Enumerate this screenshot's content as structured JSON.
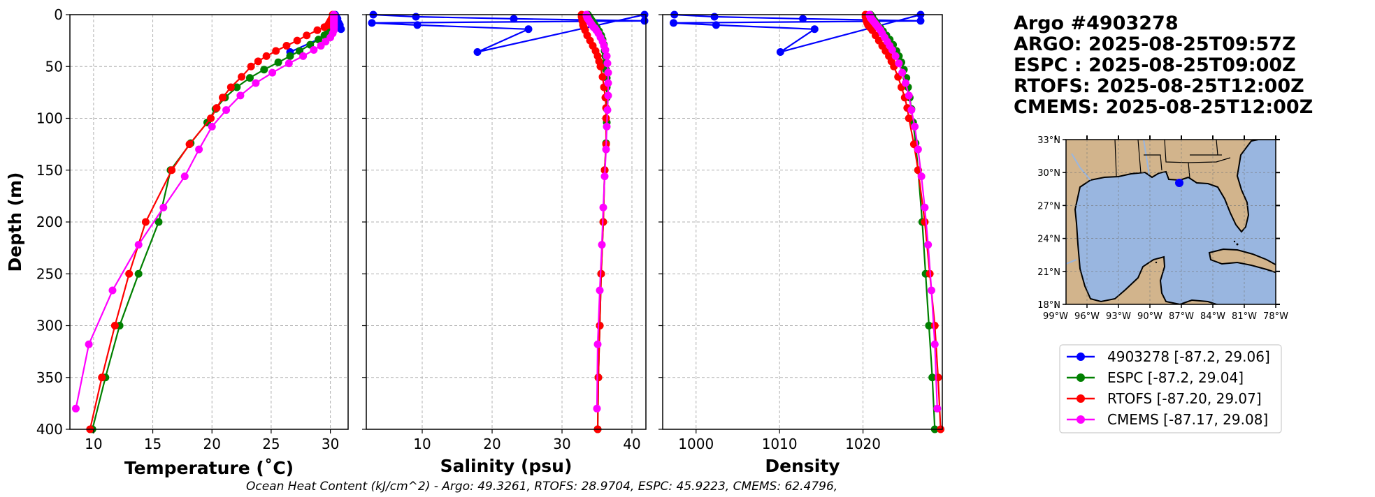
{
  "colors": {
    "argo": "#0000ff",
    "espc": "#008000",
    "rtofs": "#ff0000",
    "cmems": "#ff00ff",
    "land": "#d2b48c",
    "ocean": "#99b6e0",
    "grid": "#b0b0b0"
  },
  "info": {
    "title": "Argo #4903278",
    "argo_time": "ARGO: 2025-08-25T09:57Z",
    "espc_time": "ESPC : 2025-08-25T09:00Z",
    "rtofs_time": "RTOFS: 2025-08-25T12:00Z",
    "cmems_time": "CMEMS: 2025-08-25T12:00Z"
  },
  "footer": {
    "ohc_text": "Ocean Heat Content (kJ/cm^2) - Argo: 49.3261,  RTOFS: 28.9704,  ESPC: 45.9223,  CMEMS: 62.4796,"
  },
  "legend": [
    {
      "label": "4903278 [-87.2, 29.06]",
      "color": "#0000ff"
    },
    {
      "label": "ESPC [-87.2, 29.04]",
      "color": "#008000"
    },
    {
      "label": "RTOFS [-87.20, 29.07]",
      "color": "#ff0000"
    },
    {
      "label": "CMEMS [-87.17, 29.08]",
      "color": "#ff00ff"
    }
  ],
  "map": {
    "lat_labels": [
      "33°N",
      "30°N",
      "27°N",
      "24°N",
      "21°N",
      "18°N"
    ],
    "lon_labels": [
      "99°W",
      "96°W",
      "93°W",
      "90°W",
      "87°W",
      "84°W",
      "81°W",
      "78°W"
    ],
    "lon_range": [
      -98,
      -78
    ],
    "lat_range": [
      18,
      33
    ],
    "float_position": {
      "lon": -87.2,
      "lat": 29.06
    }
  },
  "chart_data": [
    {
      "type": "line",
      "panel": "temperature",
      "xlabel": "Temperature (˚C)",
      "ylabel": "Depth (m)",
      "xlim": [
        8,
        31.5
      ],
      "ylim": [
        400,
        0
      ],
      "xticks": [
        "10",
        "15",
        "20",
        "25",
        "30"
      ],
      "yticks": [
        "0",
        "50",
        "100",
        "150",
        "200",
        "250",
        "300",
        "350",
        "400"
      ],
      "grid": true,
      "series": [
        {
          "name": "4903278",
          "color": "#0000ff",
          "depth": [
            0,
            2,
            4,
            6,
            8,
            10,
            12,
            14,
            36
          ],
          "values": [
            30.4,
            30.5,
            30.6,
            30.6,
            30.7,
            30.8,
            30.8,
            30.9,
            26.6
          ]
        },
        {
          "name": "ESPC",
          "color": "#008000",
          "depth": [
            0,
            2,
            4,
            6,
            8,
            10,
            13,
            16,
            20,
            24,
            29,
            35,
            40,
            46,
            53,
            61,
            70,
            80,
            91,
            104,
            124,
            150,
            200,
            250,
            300,
            350,
            400
          ],
          "values": [
            30.3,
            30.3,
            30.3,
            30.3,
            30.2,
            30.2,
            30.0,
            29.8,
            29.5,
            29.0,
            28.3,
            27.4,
            26.6,
            25.6,
            24.4,
            23.2,
            22.1,
            21.1,
            20.3,
            19.6,
            18.2,
            16.5,
            15.5,
            13.8,
            12.2,
            11.0,
            9.9
          ]
        },
        {
          "name": "RTOFS",
          "color": "#ff0000",
          "depth": [
            0,
            2,
            4,
            6,
            8,
            10,
            12,
            15,
            20,
            25,
            30,
            35,
            40,
            45,
            50,
            60,
            70,
            80,
            90,
            100,
            125,
            150,
            200,
            250,
            300,
            350,
            400
          ],
          "values": [
            30.2,
            30.2,
            30.1,
            30.0,
            29.9,
            29.8,
            29.5,
            28.9,
            28.0,
            27.2,
            26.3,
            25.4,
            24.6,
            23.9,
            23.3,
            22.5,
            21.6,
            20.9,
            20.4,
            19.9,
            18.1,
            16.6,
            14.4,
            13.0,
            11.8,
            10.7,
            9.7
          ]
        },
        {
          "name": "CMEMS",
          "color": "#ff00ff",
          "depth": [
            0,
            1,
            2,
            3,
            4,
            5,
            6,
            7,
            8,
            9,
            10,
            11,
            12,
            13,
            15,
            18,
            22,
            26,
            30,
            34,
            40,
            47,
            56,
            66,
            78,
            92,
            108,
            130,
            156,
            186,
            222,
            266,
            318,
            380
          ],
          "values": [
            30.3,
            30.3,
            30.3,
            30.3,
            30.3,
            30.3,
            30.3,
            30.3,
            30.3,
            30.3,
            30.3,
            30.3,
            30.3,
            30.3,
            30.3,
            30.2,
            30.0,
            29.6,
            29.2,
            28.6,
            27.7,
            26.5,
            25.1,
            23.7,
            22.4,
            21.2,
            20.0,
            18.9,
            17.7,
            15.9,
            13.8,
            11.6,
            9.6,
            8.5
          ]
        }
      ]
    },
    {
      "type": "line",
      "panel": "salinity",
      "xlabel": "Salinity (psu)",
      "ylabel": "",
      "xlim": [
        2,
        42
      ],
      "ylim": [
        400,
        0
      ],
      "xticks": [
        "10",
        "20",
        "30",
        "40"
      ],
      "grid": true,
      "series": [
        {
          "name": "4903278",
          "color": "#0000ff",
          "depth": [
            0,
            2,
            4,
            6,
            8,
            10,
            14,
            36,
            0
          ],
          "values": [
            3.0,
            9.1,
            23.1,
            41.8,
            2.8,
            9.3,
            25.2,
            17.9,
            41.8
          ]
        },
        {
          "name": "ESPC",
          "color": "#008000",
          "depth": [
            0,
            2,
            4,
            6,
            8,
            10,
            13,
            16,
            20,
            24,
            29,
            35,
            40,
            46,
            53,
            61,
            70,
            80,
            91,
            104,
            124,
            150,
            200,
            250,
            300,
            350,
            400
          ],
          "values": [
            33.7,
            33.9,
            34.1,
            34.3,
            34.5,
            34.7,
            35.0,
            35.3,
            35.6,
            35.8,
            36.0,
            36.1,
            36.2,
            36.3,
            36.3,
            36.4,
            36.4,
            36.4,
            36.4,
            36.4,
            36.3,
            36.1,
            35.9,
            35.6,
            35.4,
            35.2,
            35.1
          ]
        },
        {
          "name": "RTOFS",
          "color": "#ff0000",
          "depth": [
            0,
            2,
            4,
            6,
            8,
            10,
            12,
            15,
            20,
            25,
            30,
            35,
            40,
            45,
            50,
            60,
            70,
            80,
            90,
            100,
            125,
            150,
            200,
            250,
            300,
            350,
            400
          ],
          "values": [
            32.8,
            32.8,
            32.9,
            32.9,
            33.0,
            33.0,
            33.1,
            33.3,
            33.6,
            34.0,
            34.4,
            34.8,
            35.1,
            35.3,
            35.5,
            35.8,
            36.0,
            36.2,
            36.3,
            36.3,
            36.3,
            36.1,
            35.9,
            35.6,
            35.4,
            35.2,
            35.1
          ]
        },
        {
          "name": "CMEMS",
          "color": "#ff00ff",
          "depth": [
            0,
            1,
            2,
            3,
            4,
            5,
            6,
            7,
            8,
            9,
            10,
            11,
            12,
            13,
            15,
            18,
            22,
            26,
            30,
            34,
            40,
            47,
            56,
            66,
            78,
            92,
            108,
            130,
            156,
            186,
            222,
            266,
            318,
            380
          ],
          "values": [
            33.5,
            33.5,
            33.6,
            33.6,
            33.7,
            33.8,
            33.9,
            34.0,
            34.1,
            34.2,
            34.3,
            34.4,
            34.5,
            34.7,
            34.9,
            35.2,
            35.5,
            35.8,
            36.0,
            36.2,
            36.4,
            36.5,
            36.6,
            36.6,
            36.6,
            36.5,
            36.4,
            36.3,
            36.1,
            35.9,
            35.7,
            35.4,
            35.1,
            35.0
          ]
        }
      ]
    },
    {
      "type": "line",
      "panel": "density",
      "xlabel": "Density",
      "ylabel": "",
      "xlim": [
        996,
        1029.5
      ],
      "ylim": [
        400,
        0
      ],
      "xticks": [
        "1000",
        "1010",
        "1020"
      ],
      "grid": true,
      "series": [
        {
          "name": "4903278",
          "color": "#0000ff",
          "depth": [
            0,
            2,
            4,
            6,
            8,
            10,
            14,
            36,
            0
          ],
          "values": [
            997.4,
            1002.2,
            1012.8,
            1026.9,
            997.3,
            1002.4,
            1014.2,
            1010.1,
            1026.9
          ]
        },
        {
          "name": "ESPC",
          "color": "#008000",
          "depth": [
            0,
            2,
            4,
            6,
            8,
            10,
            13,
            16,
            20,
            24,
            29,
            35,
            40,
            46,
            53,
            61,
            70,
            80,
            91,
            104,
            124,
            150,
            200,
            250,
            300,
            350,
            400
          ],
          "values": [
            1020.9,
            1021.1,
            1021.2,
            1021.4,
            1021.6,
            1021.7,
            1022.1,
            1022.4,
            1022.8,
            1023.2,
            1023.6,
            1024.0,
            1024.3,
            1024.6,
            1024.9,
            1025.2,
            1025.4,
            1025.6,
            1025.8,
            1026.0,
            1026.3,
            1026.6,
            1027.1,
            1027.5,
            1027.9,
            1028.3,
            1028.6
          ]
        },
        {
          "name": "RTOFS",
          "color": "#ff0000",
          "depth": [
            0,
            2,
            4,
            6,
            8,
            10,
            12,
            15,
            20,
            25,
            30,
            35,
            40,
            45,
            50,
            60,
            70,
            80,
            90,
            100,
            125,
            150,
            200,
            250,
            300,
            350,
            400
          ],
          "values": [
            1020.3,
            1020.3,
            1020.4,
            1020.4,
            1020.5,
            1020.6,
            1020.8,
            1021.1,
            1021.5,
            1021.9,
            1022.3,
            1022.7,
            1023.1,
            1023.4,
            1023.7,
            1024.2,
            1024.6,
            1025.0,
            1025.3,
            1025.5,
            1026.1,
            1026.6,
            1027.4,
            1028.0,
            1028.6,
            1029.0,
            1029.3
          ]
        },
        {
          "name": "CMEMS",
          "color": "#ff00ff",
          "depth": [
            0,
            1,
            2,
            3,
            4,
            5,
            6,
            7,
            8,
            9,
            10,
            11,
            12,
            13,
            15,
            18,
            22,
            26,
            30,
            34,
            40,
            47,
            56,
            66,
            78,
            92,
            108,
            130,
            156,
            186,
            222,
            266,
            318,
            380
          ],
          "values": [
            1020.8,
            1020.8,
            1020.9,
            1020.9,
            1021.0,
            1021.1,
            1021.2,
            1021.3,
            1021.4,
            1021.5,
            1021.6,
            1021.7,
            1021.8,
            1021.9,
            1022.1,
            1022.3,
            1022.6,
            1022.9,
            1023.2,
            1023.5,
            1023.9,
            1024.3,
            1024.7,
            1025.1,
            1025.5,
            1025.8,
            1026.2,
            1026.6,
            1027.0,
            1027.4,
            1027.8,
            1028.2,
            1028.6,
            1028.9
          ]
        }
      ]
    }
  ]
}
